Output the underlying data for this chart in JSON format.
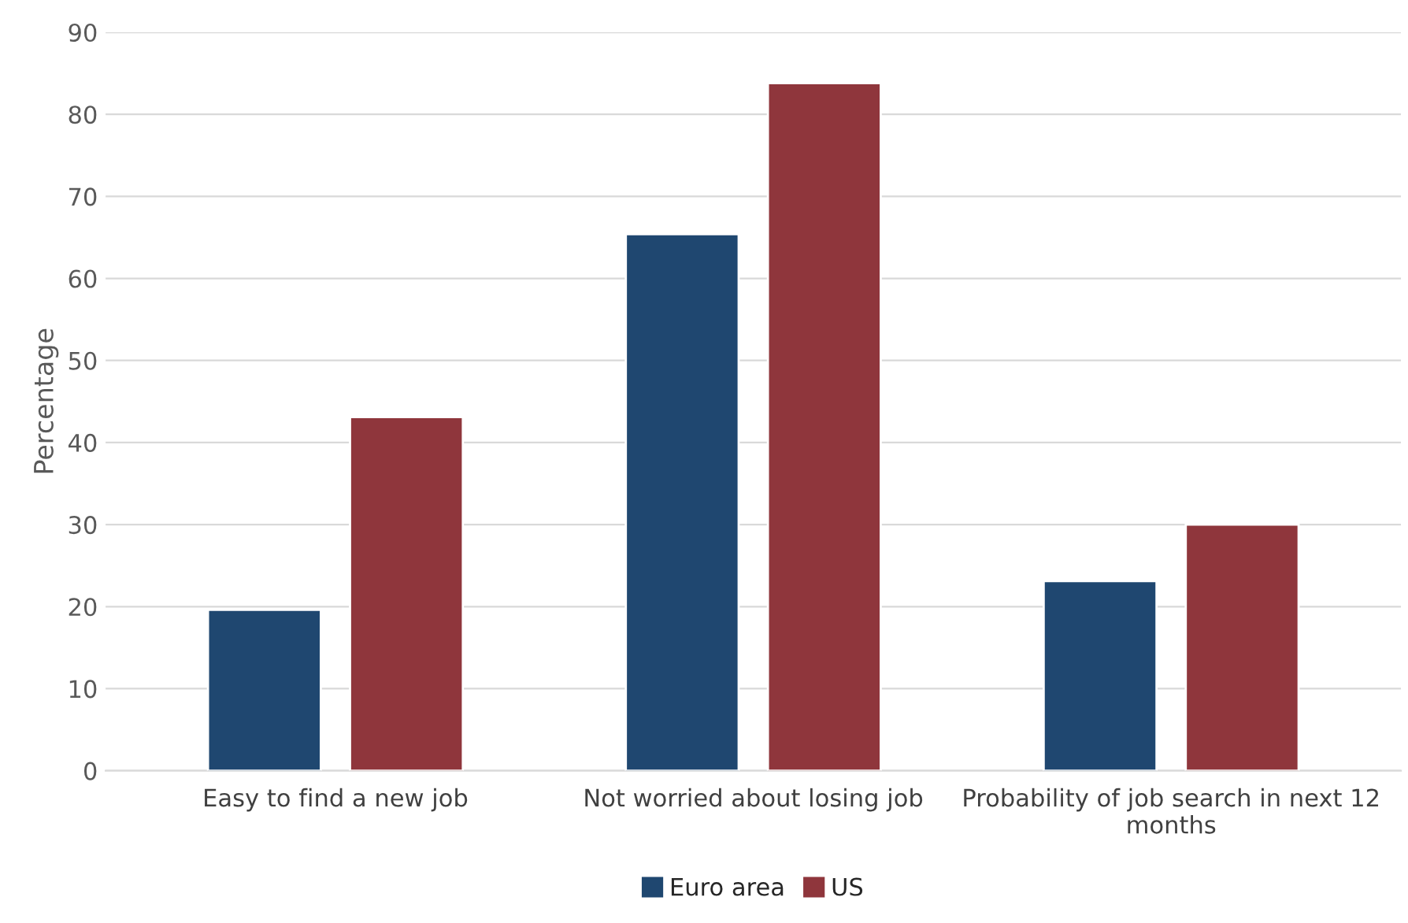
{
  "chart_data": {
    "type": "bar",
    "ylabel": "Percentage",
    "categories": [
      "Easy to find a new job",
      "Not worried about losing job",
      "Probability of job search in next 12 months"
    ],
    "series": [
      {
        "name": "Euro area",
        "color": "#1f4770",
        "values": [
          19.6,
          65.4,
          23.1
        ]
      },
      {
        "name": "US",
        "color": "#8f363c",
        "values": [
          43.1,
          83.8,
          30.0
        ]
      }
    ],
    "ylim": [
      0,
      90
    ],
    "yticks": [
      0,
      10,
      20,
      30,
      40,
      50,
      60,
      70,
      80,
      90
    ],
    "grid": "y",
    "legend": "bottom"
  }
}
